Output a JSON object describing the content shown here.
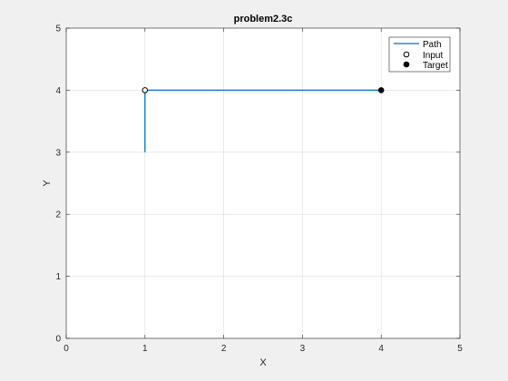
{
  "chart_data": {
    "type": "line",
    "title": "problem2.3c",
    "xlabel": "X",
    "ylabel": "Y",
    "xlim": [
      0,
      5
    ],
    "ylim": [
      0,
      5
    ],
    "xticks": [
      0,
      1,
      2,
      3,
      4,
      5
    ],
    "yticks": [
      0,
      1,
      2,
      3,
      4,
      5
    ],
    "grid": true,
    "legend_position": "top-right",
    "series": [
      {
        "name": "Path",
        "kind": "line",
        "color": "#0072bd",
        "x": [
          1,
          1,
          4
        ],
        "y": [
          3,
          4,
          4
        ]
      },
      {
        "name": "Input",
        "kind": "marker-open",
        "color": "#000000",
        "x": [
          1
        ],
        "y": [
          4
        ]
      },
      {
        "name": "Target",
        "kind": "marker-filled",
        "color": "#000000",
        "x": [
          4
        ],
        "y": [
          4
        ]
      }
    ]
  }
}
